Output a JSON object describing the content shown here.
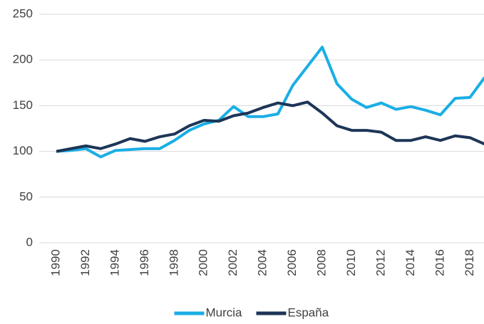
{
  "chart_data": {
    "type": "line",
    "x": [
      1990,
      1991,
      1992,
      1993,
      1994,
      1995,
      1996,
      1997,
      1998,
      1999,
      2000,
      2001,
      2002,
      2003,
      2004,
      2005,
      2006,
      2007,
      2008,
      2009,
      2010,
      2011,
      2012,
      2013,
      2014,
      2015,
      2016,
      2017,
      2018,
      2019
    ],
    "series": [
      {
        "name": "Murcia",
        "color": "#1aaee5",
        "values": [
          100,
          101,
          103,
          94,
          101,
          102,
          103,
          103,
          112,
          123,
          130,
          134,
          149,
          138,
          138,
          141,
          172,
          193,
          214,
          174,
          157,
          148,
          153,
          146,
          149,
          145,
          140,
          158,
          159,
          181
        ]
      },
      {
        "name": "España",
        "color": "#1d3557",
        "values": [
          100,
          103,
          106,
          103,
          108,
          114,
          111,
          116,
          119,
          128,
          134,
          133,
          139,
          142,
          148,
          153,
          150,
          154,
          142,
          128,
          123,
          123,
          121,
          112,
          112,
          116,
          112,
          117,
          115,
          108
        ]
      }
    ],
    "xlim": [
      1990,
      2019
    ],
    "xticks": [
      1990,
      1992,
      1994,
      1996,
      1998,
      2000,
      2002,
      2004,
      2006,
      2008,
      2010,
      2012,
      2014,
      2016,
      2018
    ],
    "ylim": [
      0,
      250
    ],
    "yticks": [
      0,
      50,
      100,
      150,
      200,
      250
    ],
    "grid": true,
    "legend": "bottom"
  }
}
